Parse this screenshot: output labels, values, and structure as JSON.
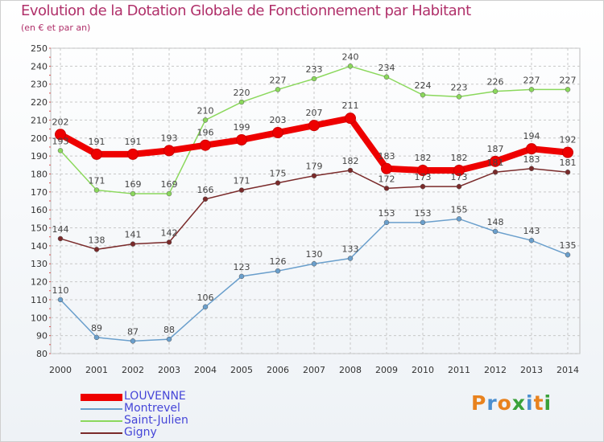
{
  "title": "Evolution de la Dotation Globale de Fonctionnement par Habitant",
  "subtitle": "(en € et par an)",
  "brand": {
    "text": "Proxiti",
    "letters": [
      {
        "ch": "P",
        "color": "#e8821e"
      },
      {
        "ch": "r",
        "color": "#4b8fd0"
      },
      {
        "ch": "o",
        "color": "#e8821e"
      },
      {
        "ch": "x",
        "color": "#3aa13a"
      },
      {
        "ch": "i",
        "color": "#4b8fd0"
      },
      {
        "ch": "t",
        "color": "#e8821e"
      },
      {
        "ch": "i",
        "color": "#3aa13a"
      }
    ]
  },
  "chart_data": {
    "type": "line",
    "title": "Evolution de la Dotation Globale de Fonctionnement par Habitant",
    "subtitle": "(en € et par an)",
    "xlabel": "",
    "ylabel": "",
    "ylim": [
      80,
      250
    ],
    "yticks": [
      80,
      90,
      100,
      110,
      120,
      130,
      140,
      150,
      160,
      170,
      180,
      190,
      200,
      210,
      220,
      230,
      240,
      250
    ],
    "grid": true,
    "legend_position": "bottom-left",
    "categories": [
      "2000",
      "2001",
      "2002",
      "2003",
      "2004",
      "2005",
      "2006",
      "2007",
      "2008",
      "2009",
      "2010",
      "2011",
      "2012",
      "2013",
      "2014"
    ],
    "series": [
      {
        "name": "LOUVENNE",
        "color": "#ee0000",
        "emphasis": true,
        "values": [
          202,
          191,
          191,
          193,
          196,
          199,
          203,
          207,
          211,
          183,
          182,
          182,
          187,
          194,
          192
        ]
      },
      {
        "name": "Montrevel",
        "color": "#6a9fcc",
        "values": [
          110,
          89,
          87,
          88,
          106,
          123,
          126,
          130,
          133,
          153,
          153,
          155,
          148,
          143,
          135
        ]
      },
      {
        "name": "Saint-Julien",
        "color": "#8bd85c",
        "values": [
          193,
          171,
          169,
          169,
          210,
          220,
          227,
          233,
          240,
          234,
          224,
          223,
          226,
          227,
          227
        ]
      },
      {
        "name": "Gigny",
        "color": "#7a2a2a",
        "values": [
          144,
          138,
          141,
          142,
          166,
          171,
          175,
          179,
          182,
          172,
          173,
          173,
          181,
          183,
          181
        ]
      }
    ]
  }
}
